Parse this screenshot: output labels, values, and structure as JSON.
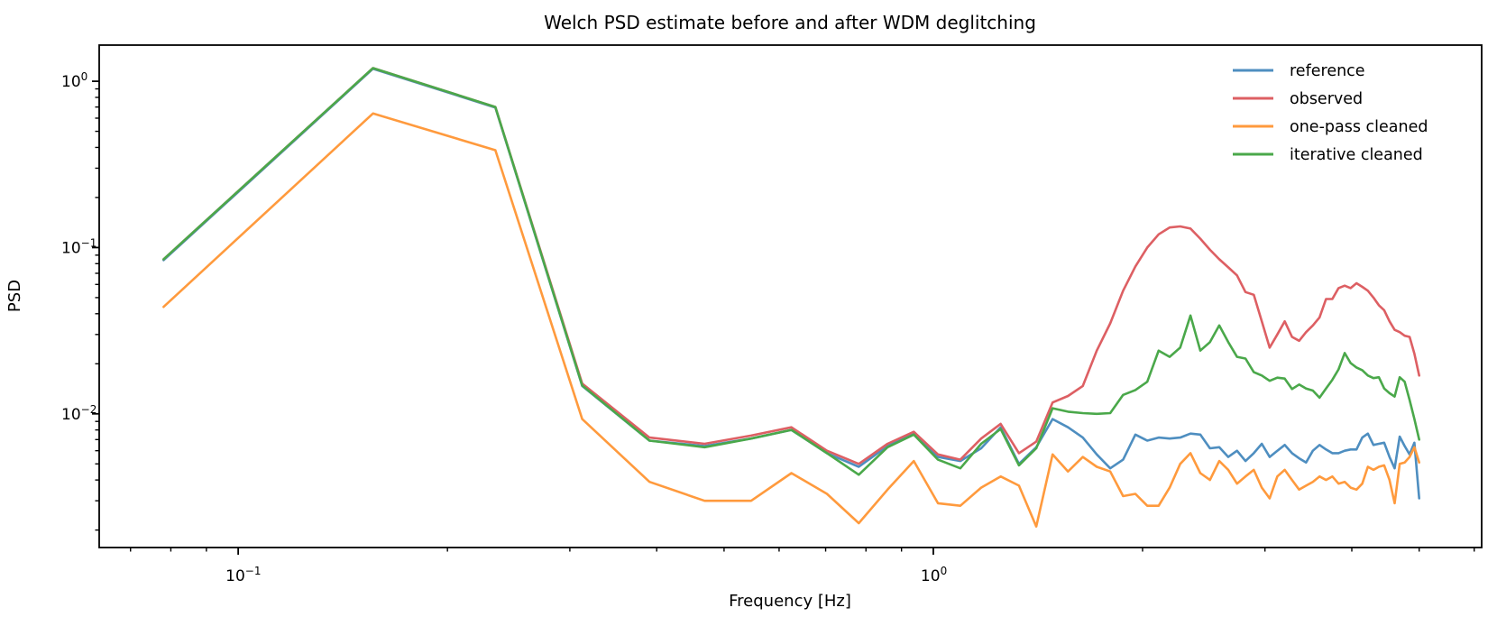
{
  "chart_data": {
    "type": "line",
    "title": "Welch PSD estimate before and after WDM deglitching",
    "xlabel": "Frequency [Hz]",
    "ylabel": "PSD",
    "xscale": "log",
    "yscale": "log",
    "grid": false,
    "legend_position": "upper right",
    "xlim": [
      0.0631,
      6.15
    ],
    "ylim": [
      0.00157,
      1.65
    ],
    "x_ticks": [
      {
        "value": 0.1,
        "base": "10",
        "exp": "−1"
      },
      {
        "value": 1.0,
        "base": "10",
        "exp": "0"
      }
    ],
    "y_ticks": [
      {
        "value": 1.0,
        "base": "10",
        "exp": "0"
      },
      {
        "value": 0.1,
        "base": "10",
        "exp": "−1"
      },
      {
        "value": 0.01,
        "base": "10",
        "exp": "−2"
      }
    ],
    "x": [
      0.0781,
      0.1563,
      0.2344,
      0.3125,
      0.3906,
      0.4688,
      0.5469,
      0.625,
      0.7031,
      0.7813,
      0.8594,
      0.9375,
      1.0156,
      1.0938,
      1.1719,
      1.25,
      1.3281,
      1.4063,
      1.4844,
      1.5625,
      1.6406,
      1.7188,
      1.7969,
      1.875,
      1.9531,
      2.0313,
      2.1094,
      2.1875,
      2.2656,
      2.3438,
      2.4219,
      2.5,
      2.5781,
      2.6563,
      2.7344,
      2.8125,
      2.8906,
      2.9688,
      3.0469,
      3.125,
      3.2031,
      3.2813,
      3.3594,
      3.4375,
      3.5156,
      3.5938,
      3.6719,
      3.75,
      3.8281,
      3.9063,
      3.9844,
      4.0625,
      4.1406,
      4.2188,
      4.2969,
      4.375,
      4.4531,
      4.5313,
      4.6094,
      4.6875,
      4.7656,
      4.8438,
      4.9219,
      5.0
    ],
    "series": [
      {
        "name": "reference",
        "color": "#4e8ec0",
        "values": [
          0.084,
          1.19,
          0.695,
          0.0147,
          0.0069,
          0.0064,
          0.0071,
          0.008,
          0.0058,
          0.0048,
          0.0064,
          0.0076,
          0.0055,
          0.0052,
          0.0062,
          0.0083,
          0.005,
          0.0063,
          0.0093,
          0.0083,
          0.0072,
          0.0057,
          0.0047,
          0.0053,
          0.0075,
          0.0069,
          0.0072,
          0.0071,
          0.0072,
          0.0076,
          0.0075,
          0.0062,
          0.0063,
          0.0055,
          0.006,
          0.0052,
          0.0058,
          0.0066,
          0.0055,
          0.006,
          0.0065,
          0.0058,
          0.0054,
          0.0051,
          0.006,
          0.0065,
          0.0061,
          0.0058,
          0.0058,
          0.006,
          0.0061,
          0.0061,
          0.0072,
          0.0076,
          0.0065,
          0.0066,
          0.0067,
          0.0055,
          0.0047,
          0.0073,
          0.0064,
          0.0057,
          0.0067,
          0.0031
        ]
      },
      {
        "name": "observed",
        "color": "#dd5f63",
        "values": [
          0.085,
          1.2,
          0.7,
          0.0152,
          0.0072,
          0.0066,
          0.0074,
          0.0083,
          0.006,
          0.005,
          0.0066,
          0.0078,
          0.0057,
          0.0053,
          0.0071,
          0.0087,
          0.0058,
          0.0068,
          0.0117,
          0.0128,
          0.0147,
          0.024,
          0.035,
          0.055,
          0.077,
          0.1,
          0.12,
          0.132,
          0.134,
          0.13,
          0.113,
          0.097,
          0.085,
          0.076,
          0.068,
          0.054,
          0.052,
          0.036,
          0.025,
          0.03,
          0.036,
          0.029,
          0.0275,
          0.031,
          0.034,
          0.038,
          0.049,
          0.049,
          0.057,
          0.059,
          0.057,
          0.061,
          0.058,
          0.055,
          0.05,
          0.045,
          0.042,
          0.036,
          0.032,
          0.031,
          0.0295,
          0.029,
          0.023,
          0.017
        ]
      },
      {
        "name": "one-pass cleaned",
        "color": "#ff9a3d",
        "values": [
          0.044,
          0.64,
          0.385,
          0.0093,
          0.0039,
          0.003,
          0.003,
          0.0044,
          0.0033,
          0.0022,
          0.0035,
          0.0052,
          0.0029,
          0.0028,
          0.0036,
          0.0042,
          0.0037,
          0.0021,
          0.0057,
          0.0045,
          0.0055,
          0.0048,
          0.0045,
          0.0032,
          0.0033,
          0.0028,
          0.0028,
          0.0036,
          0.005,
          0.0058,
          0.0044,
          0.004,
          0.0052,
          0.0046,
          0.0038,
          0.0042,
          0.0046,
          0.0036,
          0.0031,
          0.0042,
          0.0046,
          0.004,
          0.0035,
          0.0037,
          0.0039,
          0.0042,
          0.004,
          0.0042,
          0.0038,
          0.0039,
          0.0036,
          0.0035,
          0.0038,
          0.0048,
          0.0046,
          0.0048,
          0.0049,
          0.004,
          0.0029,
          0.005,
          0.0051,
          0.0055,
          0.0063,
          0.0051
        ]
      },
      {
        "name": "iterative cleaned",
        "color": "#4aa84a",
        "values": [
          0.085,
          1.2,
          0.7,
          0.0148,
          0.0069,
          0.0063,
          0.0071,
          0.008,
          0.0058,
          0.0043,
          0.0063,
          0.0075,
          0.0053,
          0.0047,
          0.0066,
          0.0081,
          0.0049,
          0.0062,
          0.0108,
          0.0103,
          0.0101,
          0.01,
          0.0101,
          0.013,
          0.0139,
          0.0156,
          0.024,
          0.022,
          0.025,
          0.039,
          0.024,
          0.027,
          0.034,
          0.027,
          0.022,
          0.0215,
          0.0178,
          0.017,
          0.0158,
          0.0165,
          0.0163,
          0.0141,
          0.015,
          0.0142,
          0.0138,
          0.0125,
          0.0142,
          0.016,
          0.0185,
          0.0232,
          0.0202,
          0.019,
          0.0183,
          0.017,
          0.0164,
          0.0166,
          0.0142,
          0.0133,
          0.0127,
          0.0166,
          0.0156,
          0.0121,
          0.0093,
          0.007
        ]
      }
    ]
  }
}
